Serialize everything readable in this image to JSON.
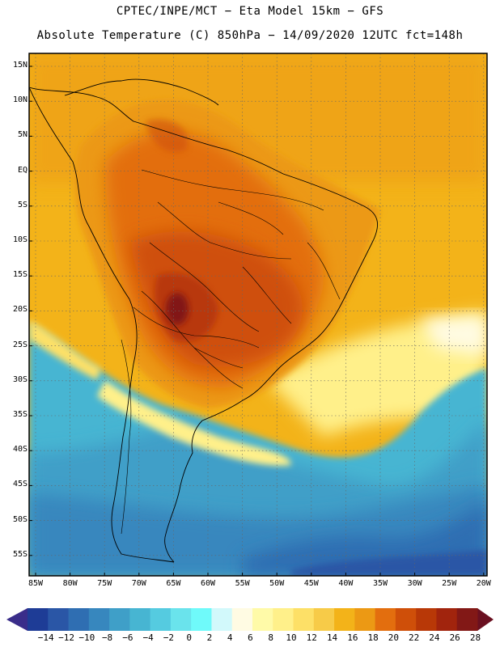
{
  "header": {
    "line1": "CPTEC/INPE/MCT −  Eta Model 15km − GFS",
    "line2": "Absolute Temperature (C) 850hPa − 14/09/2020 12UTC fct=148h"
  },
  "latitude_labels": [
    "15N",
    "10N",
    "5N",
    "EQ",
    "5S",
    "10S",
    "15S",
    "20S",
    "25S",
    "30S",
    "35S",
    "40S",
    "45S",
    "50S",
    "55S"
  ],
  "longitude_labels": [
    "85W",
    "80W",
    "75W",
    "70W",
    "65W",
    "60W",
    "55W",
    "50W",
    "45W",
    "40W",
    "35W",
    "30W",
    "25W",
    "20W"
  ],
  "colorbar": {
    "labels": [
      "−14",
      "−12",
      "−10",
      "−8",
      "−6",
      "−4",
      "−2",
      "0",
      "2",
      "4",
      "6",
      "8",
      "10",
      "12",
      "14",
      "16",
      "18",
      "20",
      "22",
      "24",
      "26",
      "28"
    ],
    "colors": [
      "#1e3c96",
      "#2a56a6",
      "#2f6eb2",
      "#3787be",
      "#3f9fc8",
      "#47b5d2",
      "#55cbe0",
      "#6ae3ec",
      "#6ffafa",
      "#d2f9fb",
      "#fffbe3",
      "#fffaa8",
      "#fff08a",
      "#fde067",
      "#f7cb48",
      "#f3b319",
      "#ec9914",
      "#e36e0e",
      "#cf4f09",
      "#b83807",
      "#a1240d",
      "#821816"
    ],
    "left_arrow_color": "#3a2d8a",
    "right_arrow_color": "#6a1020"
  },
  "colors": {
    "background": "#ffffff",
    "frame": "#000000",
    "grid": "#666666"
  }
}
